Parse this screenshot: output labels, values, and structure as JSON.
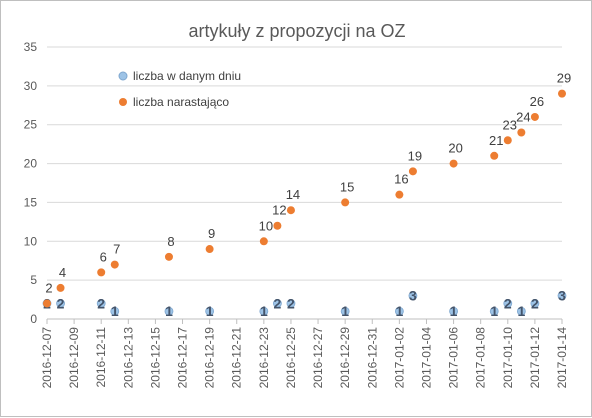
{
  "chart_data": {
    "type": "scatter",
    "title": "artykuły z propozycji na OZ",
    "ylim": [
      0,
      35
    ],
    "yticks": [
      0,
      5,
      10,
      15,
      20,
      25,
      30,
      35
    ],
    "xlim": [
      "2016-12-07",
      "2017-01-14"
    ],
    "xticks": [
      "2016-12-07",
      "2016-12-09",
      "2016-12-11",
      "2016-12-13",
      "2016-12-15",
      "2016-12-17",
      "2016-12-19",
      "2016-12-21",
      "2016-12-23",
      "2016-12-25",
      "2016-12-27",
      "2016-12-29",
      "2016-12-31",
      "2017-01-02",
      "2017-01-04",
      "2017-01-06",
      "2017-01-08",
      "2017-01-10",
      "2017-01-12",
      "2017-01-14"
    ],
    "grid": "horizontal",
    "legend_position": "top-left",
    "series": [
      {
        "name": "liczba w danym dniu",
        "color": "#9dc3e6",
        "points": [
          {
            "x": "2016-12-07",
            "y": 2
          },
          {
            "x": "2016-12-08",
            "y": 2
          },
          {
            "x": "2016-12-11",
            "y": 2
          },
          {
            "x": "2016-12-12",
            "y": 1
          },
          {
            "x": "2016-12-16",
            "y": 1
          },
          {
            "x": "2016-12-19",
            "y": 1
          },
          {
            "x": "2016-12-23",
            "y": 1
          },
          {
            "x": "2016-12-24",
            "y": 2
          },
          {
            "x": "2016-12-25",
            "y": 2
          },
          {
            "x": "2016-12-29",
            "y": 1
          },
          {
            "x": "2017-01-02",
            "y": 1
          },
          {
            "x": "2017-01-03",
            "y": 3
          },
          {
            "x": "2017-01-06",
            "y": 1
          },
          {
            "x": "2017-01-09",
            "y": 1
          },
          {
            "x": "2017-01-10",
            "y": 2
          },
          {
            "x": "2017-01-11",
            "y": 1
          },
          {
            "x": "2017-01-12",
            "y": 2
          },
          {
            "x": "2017-01-14",
            "y": 3
          }
        ]
      },
      {
        "name": "liczba narastająco",
        "color": "#ed7d31",
        "points": [
          {
            "x": "2016-12-07",
            "y": 2
          },
          {
            "x": "2016-12-08",
            "y": 4
          },
          {
            "x": "2016-12-11",
            "y": 6
          },
          {
            "x": "2016-12-12",
            "y": 7
          },
          {
            "x": "2016-12-16",
            "y": 8
          },
          {
            "x": "2016-12-19",
            "y": 9
          },
          {
            "x": "2016-12-23",
            "y": 10
          },
          {
            "x": "2016-12-24",
            "y": 12
          },
          {
            "x": "2016-12-25",
            "y": 14
          },
          {
            "x": "2016-12-29",
            "y": 15
          },
          {
            "x": "2017-01-02",
            "y": 16
          },
          {
            "x": "2017-01-03",
            "y": 19
          },
          {
            "x": "2017-01-06",
            "y": 20
          },
          {
            "x": "2017-01-09",
            "y": 21
          },
          {
            "x": "2017-01-10",
            "y": 23
          },
          {
            "x": "2017-01-11",
            "y": 24
          },
          {
            "x": "2017-01-12",
            "y": 26
          },
          {
            "x": "2017-01-14",
            "y": 29
          }
        ]
      }
    ]
  }
}
